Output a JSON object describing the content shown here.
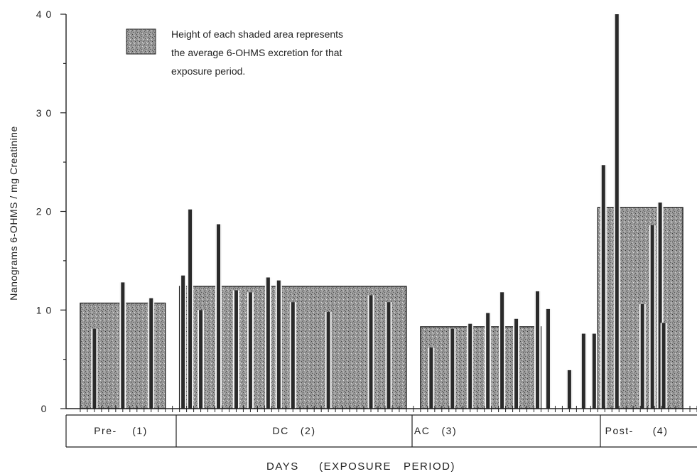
{
  "chart_data": {
    "type": "bar",
    "ylabel": "Nanograms 6-OHMS / mg Creatinine",
    "xlabel": "DAYS     (EXPOSURE   PERIOD)",
    "ylim": [
      0,
      40
    ],
    "yticks": [
      0,
      10,
      20,
      30,
      40
    ],
    "ytick_labels": [
      "0",
      "1 0",
      "2 0",
      "3 0",
      "4 0"
    ],
    "legend": {
      "lines": [
        "Height of each shaded area represents",
        "the average 6-OHMS excretion for that",
        "exposure period."
      ]
    },
    "periods": [
      {
        "label": "Pre-    (1)",
        "average": 10.7,
        "day_start": 0,
        "day_end": 12
      },
      {
        "label": "DC   (2)",
        "average": 12.4,
        "day_start": 14,
        "day_end": 46
      },
      {
        "label": "AC   (3)",
        "average": 8.3,
        "day_start": 48,
        "day_end": 65
      },
      {
        "label": "Post-     (4)",
        "average": 20.4,
        "day_start": 73,
        "day_end": 85
      }
    ],
    "daily_values": [
      {
        "day": 2,
        "value": 8.1
      },
      {
        "day": 6,
        "value": 12.8
      },
      {
        "day": 10,
        "value": 11.2
      },
      {
        "day": 14.5,
        "value": 13.5
      },
      {
        "day": 15.5,
        "value": 20.2
      },
      {
        "day": 17,
        "value": 10.0
      },
      {
        "day": 19.5,
        "value": 18.7
      },
      {
        "day": 22,
        "value": 12.0
      },
      {
        "day": 24,
        "value": 11.8
      },
      {
        "day": 26.5,
        "value": 13.3
      },
      {
        "day": 28,
        "value": 13.0
      },
      {
        "day": 30,
        "value": 10.8
      },
      {
        "day": 35,
        "value": 9.8
      },
      {
        "day": 41,
        "value": 11.5
      },
      {
        "day": 43.5,
        "value": 10.8
      },
      {
        "day": 49.5,
        "value": 6.2
      },
      {
        "day": 52.5,
        "value": 8.1
      },
      {
        "day": 55,
        "value": 8.6
      },
      {
        "day": 57.5,
        "value": 9.7
      },
      {
        "day": 59.5,
        "value": 11.8
      },
      {
        "day": 61.5,
        "value": 9.1
      },
      {
        "day": 64.5,
        "value": 11.9
      },
      {
        "day": 66,
        "value": 10.1
      },
      {
        "day": 69,
        "value": 3.9
      },
      {
        "day": 71,
        "value": 7.6
      },
      {
        "day": 72.5,
        "value": 7.6
      },
      {
        "day": 73.8,
        "value": 24.7
      },
      {
        "day": 75.7,
        "value": 40.0
      },
      {
        "day": 79.3,
        "value": 10.6
      },
      {
        "day": 80.7,
        "value": 18.6
      },
      {
        "day": 81.8,
        "value": 20.9
      },
      {
        "day": 82.3,
        "value": 8.7
      }
    ],
    "x_day_range": [
      -2,
      87
    ],
    "grid": false,
    "legend_position": "top-left"
  }
}
